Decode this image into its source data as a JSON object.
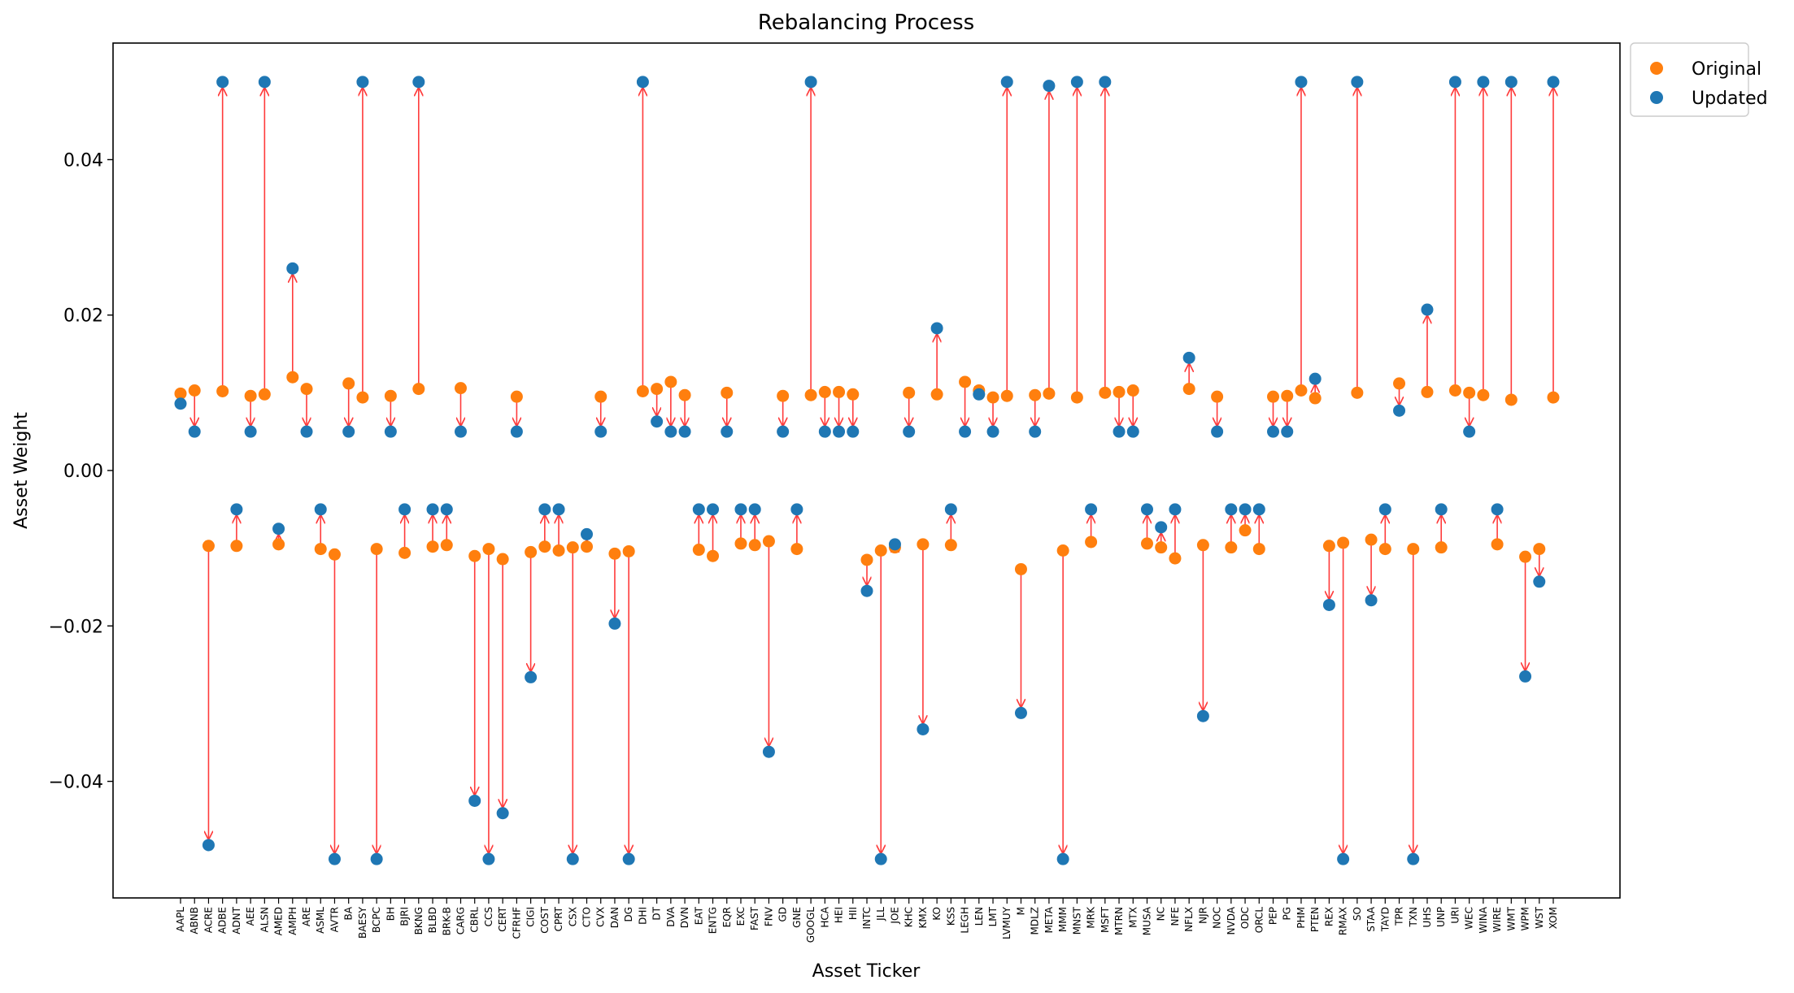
{
  "chart_data": {
    "type": "scatter",
    "title": "Rebalancing Process",
    "xlabel": "Asset Ticker",
    "ylabel": "Asset Weight",
    "ylim": [
      -0.055,
      0.055
    ],
    "yticks": [
      -0.04,
      -0.02,
      0.0,
      0.02,
      0.04
    ],
    "ytick_labels": [
      "−0.04",
      "−0.02",
      "0.00",
      "0.02",
      "0.04"
    ],
    "grid": false,
    "legend_position": "top-right",
    "colors": {
      "original": "#ff7f0e",
      "updated": "#1f77b4",
      "arrow": "#ff3b3b"
    },
    "series": [
      {
        "name": "Original",
        "color": "#ff7f0e"
      },
      {
        "name": "Updated",
        "color": "#1f77b4"
      }
    ],
    "categories": [
      "AAPL",
      "ABNB",
      "ACRE",
      "ADBE",
      "ADNT",
      "AEE",
      "ALSN",
      "AMED",
      "AMPH",
      "ARE",
      "ASML",
      "AVTR",
      "BA",
      "BAESY",
      "BCPC",
      "BH",
      "BJRI",
      "BKNG",
      "BLBD",
      "BRK-B",
      "CARG",
      "CBRL",
      "CCS",
      "CERT",
      "CFRHF",
      "CIGI",
      "COST",
      "CPRT",
      "CSX",
      "CTO",
      "CVX",
      "DAN",
      "DG",
      "DHI",
      "DT",
      "DVA",
      "DVN",
      "EAT",
      "ENTG",
      "EQR",
      "EXC",
      "FAST",
      "FNV",
      "GD",
      "GNE",
      "GOOGL",
      "HCA",
      "HEI",
      "HII",
      "INTC",
      "JLL",
      "JOE",
      "KHC",
      "KMX",
      "KO",
      "KSS",
      "LEGH",
      "LEN",
      "LMT",
      "LVMUY",
      "M",
      "MDLZ",
      "META",
      "MMM",
      "MNST",
      "MRK",
      "MSFT",
      "MTRN",
      "MTX",
      "MUSA",
      "NC",
      "NFE",
      "NFLX",
      "NJR",
      "NOC",
      "NVDA",
      "ODC",
      "ORCL",
      "PEP",
      "PG",
      "PHM",
      "PTEN",
      "REX",
      "RMAX",
      "SO",
      "STAA",
      "TAYD",
      "TPR",
      "TXN",
      "UHS",
      "UNP",
      "URI",
      "WEC",
      "WINA",
      "WIRE",
      "WMT",
      "WPM",
      "WST",
      "XOM"
    ],
    "trades": [
      {
        "x": 0.0,
        "original": 0.0099,
        "updated": 0.0086
      },
      {
        "x": 1.0,
        "original": 0.0103,
        "updated": 0.005
      },
      {
        "x": 2.0,
        "original": -0.0097,
        "updated": -0.0482
      },
      {
        "x": 3.0,
        "original": 0.0102,
        "updated": 0.05
      },
      {
        "x": 4.0,
        "original": -0.0097,
        "updated": -0.005
      },
      {
        "x": 5.0,
        "original": 0.0096,
        "updated": 0.005
      },
      {
        "x": 6.0,
        "original": 0.0098,
        "updated": 0.05
      },
      {
        "x": 7.0,
        "original": -0.0095,
        "updated": -0.0075
      },
      {
        "x": 8.0,
        "original": 0.012,
        "updated": 0.026
      },
      {
        "x": 9.0,
        "original": 0.0105,
        "updated": 0.005
      },
      {
        "x": 10.0,
        "original": -0.0101,
        "updated": -0.005
      },
      {
        "x": 11.0,
        "original": -0.0108,
        "updated": -0.05
      },
      {
        "x": 12.0,
        "original": 0.0112,
        "updated": 0.005
      },
      {
        "x": 13.0,
        "original": 0.0094,
        "updated": 0.05
      },
      {
        "x": 14.0,
        "original": -0.0101,
        "updated": -0.05
      },
      {
        "x": 15.0,
        "original": 0.0096,
        "updated": 0.005
      },
      {
        "x": 16.0,
        "original": -0.0106,
        "updated": -0.005
      },
      {
        "x": 17.0,
        "original": 0.0105,
        "updated": 0.05
      },
      {
        "x": 18.0,
        "original": -0.0098,
        "updated": -0.005
      },
      {
        "x": 19.0,
        "original": -0.0096,
        "updated": -0.005
      },
      {
        "x": 20.0,
        "original": 0.0106,
        "updated": 0.005
      },
      {
        "x": 21.0,
        "original": -0.011,
        "updated": -0.0425
      },
      {
        "x": 22.0,
        "original": -0.0101,
        "updated": -0.05
      },
      {
        "x": 23.0,
        "original": -0.0114,
        "updated": -0.0441
      },
      {
        "x": 24.0,
        "original": 0.0095,
        "updated": 0.005
      },
      {
        "x": 25.0,
        "original": -0.0105,
        "updated": -0.0266
      },
      {
        "x": 26.0,
        "original": -0.0098,
        "updated": -0.005
      },
      {
        "x": 27.0,
        "original": -0.0103,
        "updated": -0.005
      },
      {
        "x": 28.0,
        "original": -0.0099,
        "updated": -0.05
      },
      {
        "x": 29.0,
        "original": -0.0098,
        "updated": -0.0082
      },
      {
        "x": 30.0,
        "original": 0.0095,
        "updated": 0.005
      },
      {
        "x": 31.0,
        "original": -0.0107,
        "updated": -0.0197
      },
      {
        "x": 32.0,
        "original": -0.0104,
        "updated": -0.05
      },
      {
        "x": 33.0,
        "original": 0.0102,
        "updated": 0.05
      },
      {
        "x": 34.0,
        "original": 0.0105,
        "updated": 0.0063
      },
      {
        "x": 35.0,
        "original": 0.0114,
        "updated": 0.005
      },
      {
        "x": 36.0,
        "original": 0.0097,
        "updated": 0.005
      },
      {
        "x": 37.0,
        "original": -0.0102,
        "updated": -0.005
      },
      {
        "x": 38.0,
        "original": -0.011,
        "updated": -0.005
      },
      {
        "x": 39.0,
        "original": 0.01,
        "updated": 0.005
      },
      {
        "x": 40.0,
        "original": -0.0094,
        "updated": -0.005
      },
      {
        "x": 41.0,
        "original": -0.0096,
        "updated": -0.005
      },
      {
        "x": 42.0,
        "original": -0.0091,
        "updated": -0.0362
      },
      {
        "x": 43.0,
        "original": 0.0096,
        "updated": 0.005
      },
      {
        "x": 44.0,
        "original": -0.0101,
        "updated": -0.005
      },
      {
        "x": 45.0,
        "original": 0.0097,
        "updated": 0.05
      },
      {
        "x": 46.0,
        "original": 0.0101,
        "updated": 0.005
      },
      {
        "x": 47.0,
        "original": 0.0101,
        "updated": 0.005
      },
      {
        "x": 48.0,
        "original": 0.0098,
        "updated": 0.005
      },
      {
        "x": 49.0,
        "original": -0.0115,
        "updated": -0.0155
      },
      {
        "x": 50.0,
        "original": -0.0103,
        "updated": -0.05
      },
      {
        "x": 51.0,
        "original": -0.0099,
        "updated": -0.0095
      },
      {
        "x": 52.0,
        "original": 0.01,
        "updated": 0.005
      },
      {
        "x": 53.0,
        "original": -0.0095,
        "updated": -0.0333
      },
      {
        "x": 54.0,
        "original": 0.0098,
        "updated": 0.0183
      },
      {
        "x": 55.0,
        "original": -0.0096,
        "updated": -0.005
      },
      {
        "x": 56.0,
        "original": 0.0114,
        "updated": 0.005
      },
      {
        "x": 57.0,
        "original": 0.0103,
        "updated": 0.0098
      },
      {
        "x": 58.0,
        "original": 0.0094,
        "updated": 0.005
      },
      {
        "x": 59.0,
        "original": 0.0096,
        "updated": 0.05
      },
      {
        "x": 60.0,
        "original": -0.0127,
        "updated": -0.0312
      },
      {
        "x": 61.0,
        "original": 0.0097,
        "updated": 0.005
      },
      {
        "x": 62.0,
        "original": 0.0099,
        "updated": 0.0495
      },
      {
        "x": 63.0,
        "original": -0.0103,
        "updated": -0.05
      },
      {
        "x": 64.0,
        "original": 0.0094,
        "updated": 0.05
      },
      {
        "x": 65.0,
        "original": -0.0092,
        "updated": -0.005
      },
      {
        "x": 66.0,
        "original": 0.01,
        "updated": 0.05
      },
      {
        "x": 67.0,
        "original": 0.0101,
        "updated": 0.005
      },
      {
        "x": 68.0,
        "original": 0.0103,
        "updated": 0.005
      },
      {
        "x": 69.0,
        "original": -0.0094,
        "updated": -0.005
      },
      {
        "x": 70.0,
        "original": -0.0099,
        "updated": -0.0073
      },
      {
        "x": 71.0,
        "original": -0.0113,
        "updated": -0.005
      },
      {
        "x": 72.0,
        "original": 0.0105,
        "updated": 0.0145
      },
      {
        "x": 73.0,
        "original": -0.0096,
        "updated": -0.0316
      },
      {
        "x": 74.0,
        "original": 0.0095,
        "updated": 0.005
      },
      {
        "x": 75.0,
        "original": -0.0099,
        "updated": -0.005
      },
      {
        "x": 76.0,
        "original": -0.0077,
        "updated": -0.005
      },
      {
        "x": 77.0,
        "original": -0.0101,
        "updated": -0.005
      },
      {
        "x": 78.0,
        "original": 0.0095,
        "updated": 0.005
      },
      {
        "x": 79.0,
        "original": 0.0096,
        "updated": 0.005
      },
      {
        "x": 80.0,
        "original": 0.0103,
        "updated": 0.05
      },
      {
        "x": 81.0,
        "original": 0.0093,
        "updated": 0.0118
      },
      {
        "x": 82.0,
        "original": -0.0097,
        "updated": -0.0173
      },
      {
        "x": 83.0,
        "original": -0.0093,
        "updated": -0.05
      },
      {
        "x": 84.0,
        "original": 0.01,
        "updated": 0.05
      },
      {
        "x": 85.0,
        "original": -0.0089,
        "updated": -0.0167
      },
      {
        "x": 86.0,
        "original": -0.0101,
        "updated": -0.005
      },
      {
        "x": 87.0,
        "original": 0.0112,
        "updated": 0.0077
      },
      {
        "x": 88.0,
        "original": -0.0101,
        "updated": -0.05
      },
      {
        "x": 89.0,
        "original": 0.0101,
        "updated": 0.0207
      },
      {
        "x": 90.0,
        "original": -0.0099,
        "updated": -0.005
      },
      {
        "x": 91.0,
        "original": 0.0103,
        "updated": 0.05
      },
      {
        "x": 92.0,
        "original": 0.01,
        "updated": 0.005
      },
      {
        "x": 93.0,
        "original": 0.0097,
        "updated": 0.05
      },
      {
        "x": 94.0,
        "original": -0.0095,
        "updated": -0.005
      },
      {
        "x": 95.0,
        "original": 0.0091,
        "updated": 0.05
      },
      {
        "x": 96.0,
        "original": -0.0111,
        "updated": -0.0265
      },
      {
        "x": 97.0,
        "original": -0.0101,
        "updated": -0.0143
      },
      {
        "x": 98.0,
        "original": 0.0094,
        "updated": 0.05
      }
    ]
  }
}
